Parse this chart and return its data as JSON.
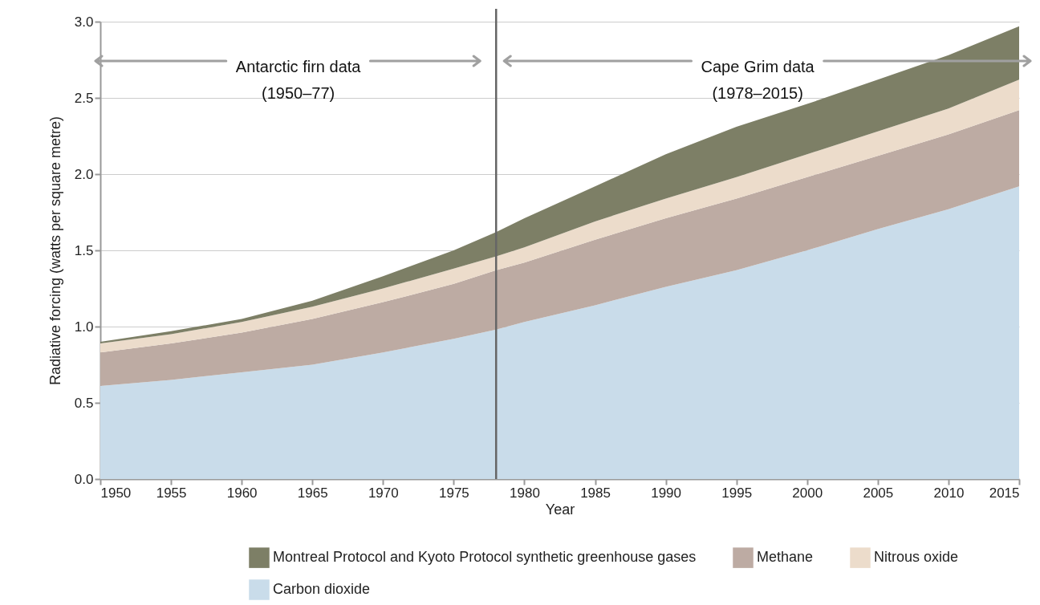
{
  "chart_data": {
    "type": "area",
    "stacked": true,
    "xlabel": "Year",
    "ylabel": "Radiative forcing (watts per square metre)",
    "x": [
      1950,
      1955,
      1960,
      1965,
      1970,
      1975,
      1978,
      1980,
      1985,
      1990,
      1995,
      2000,
      2005,
      2010,
      2015
    ],
    "series": [
      {
        "name": "Carbon dioxide",
        "color": "#c9dcea",
        "values": [
          0.61,
          0.65,
          0.7,
          0.75,
          0.83,
          0.92,
          0.98,
          1.03,
          1.14,
          1.26,
          1.37,
          1.5,
          1.64,
          1.77,
          1.92
        ]
      },
      {
        "name": "Methane",
        "color": "#bdaba3",
        "values": [
          0.22,
          0.24,
          0.26,
          0.3,
          0.33,
          0.36,
          0.39,
          0.39,
          0.43,
          0.45,
          0.47,
          0.48,
          0.48,
          0.49,
          0.5
        ]
      },
      {
        "name": "Nitrous oxide",
        "color": "#ecdccb",
        "values": [
          0.06,
          0.06,
          0.07,
          0.08,
          0.09,
          0.1,
          0.09,
          0.1,
          0.12,
          0.13,
          0.14,
          0.15,
          0.16,
          0.17,
          0.2
        ]
      },
      {
        "name": "Montreal Protocol and Kyoto Protocol synthetic greenhouse gases",
        "color": "#7d7f66",
        "values": [
          0.01,
          0.02,
          0.02,
          0.04,
          0.08,
          0.12,
          0.16,
          0.19,
          0.23,
          0.29,
          0.33,
          0.33,
          0.34,
          0.35,
          0.35
        ]
      }
    ],
    "xlim": [
      1950,
      2015
    ],
    "xticks": [
      1950,
      1955,
      1960,
      1965,
      1970,
      1975,
      1980,
      1985,
      1990,
      1995,
      2000,
      2005,
      2010,
      2015
    ],
    "ylim": [
      0,
      3
    ],
    "yticks": [
      {
        "value": 0,
        "label": "0.0"
      },
      {
        "value": 0.5,
        "label": "0.5"
      },
      {
        "value": 1,
        "label": "1.0"
      },
      {
        "value": 1.5,
        "label": "1.5"
      },
      {
        "value": 2,
        "label": "2.0"
      },
      {
        "value": 2.5,
        "label": "2.5"
      },
      {
        "value": 3,
        "label": "3.0"
      }
    ],
    "grid": "y",
    "legend": "bottom",
    "ref_lines": [
      {
        "axis": "x",
        "value": 1978,
        "color": "#666666"
      }
    ],
    "annotations": [
      "Antarctic firn data\n(1950–77)",
      "Cape Grim data\n(1978–2015)"
    ]
  }
}
